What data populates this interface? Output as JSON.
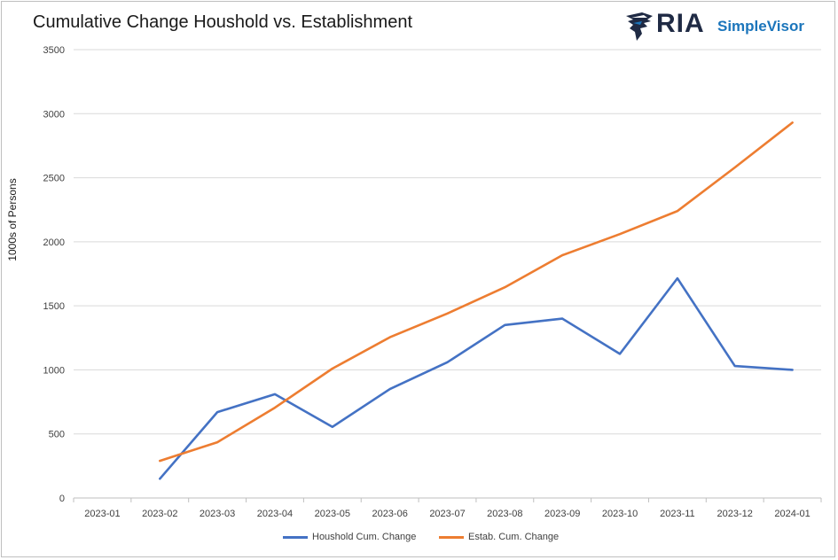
{
  "chart_data": {
    "type": "line",
    "title": "Cumulative Change Houshold vs. Establishment",
    "ylabel": "1000s of Persons",
    "xlabel": "",
    "ylim": [
      0,
      3500
    ],
    "yticks": [
      0,
      500,
      1000,
      1500,
      2000,
      2500,
      3000,
      3500
    ],
    "categories": [
      "2023-01",
      "2023-02",
      "2023-03",
      "2023-04",
      "2023-05",
      "2023-06",
      "2023-07",
      "2023-08",
      "2023-09",
      "2023-10",
      "2023-11",
      "2023-12",
      "2024-01"
    ],
    "grid": "horizontal",
    "legend_position": "bottom",
    "series": [
      {
        "name": "Houshold Cum. Change",
        "color": "#4472c4",
        "values": [
          null,
          150,
          670,
          810,
          555,
          850,
          1060,
          1350,
          1400,
          1125,
          1715,
          1030,
          1000
        ]
      },
      {
        "name": "Estab. Cum. Change",
        "color": "#ed7d31",
        "values": [
          null,
          290,
          435,
          705,
          1010,
          1255,
          1440,
          1645,
          1895,
          2060,
          2240,
          2580,
          2930
        ]
      }
    ]
  },
  "logo": {
    "brand": "RIA",
    "product": "SimpleVisor"
  }
}
